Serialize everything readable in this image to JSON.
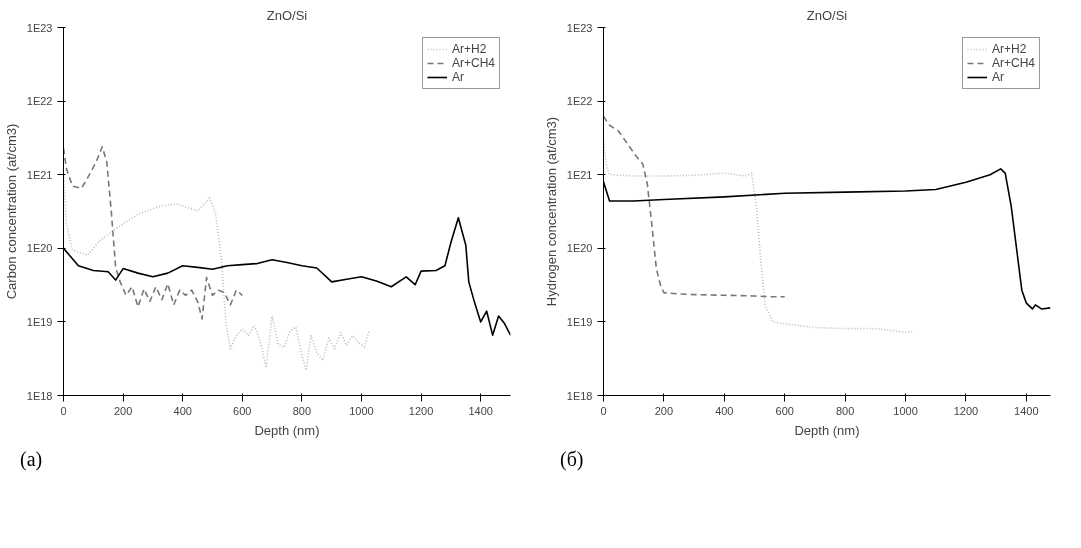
{
  "chart_data": [
    {
      "type": "line",
      "title": "ZnO/Si",
      "xlabel": "Depth (nm)",
      "ylabel": "Carbon concentration (at/cm3)",
      "log": "y",
      "grid": false,
      "legend": "top right",
      "xlim": [
        0,
        1500
      ],
      "xticks": [
        0,
        200,
        400,
        600,
        800,
        1000,
        1200,
        1400
      ],
      "ylim": [
        1e+18,
        1e+23
      ],
      "yticks": [
        {
          "value": 1e+18,
          "label": "1E18"
        },
        {
          "value": 1e+19,
          "label": "1E19"
        },
        {
          "value": 1e+20,
          "label": "1E20"
        },
        {
          "value": 1e+21,
          "label": "1E21"
        },
        {
          "value": 1e+22,
          "label": "1E22"
        },
        {
          "value": 1e+23,
          "label": "1E23"
        }
      ],
      "annotations": [
        "(a)"
      ],
      "series": [
        {
          "name": "Ar+H2",
          "color": "#bbbbbb",
          "line_style": "dotted",
          "x": [
            0,
            10,
            30,
            80,
            120,
            180,
            250,
            330,
            380,
            450,
            490,
            510,
            530,
            545,
            560,
            580,
            600,
            620,
            640,
            660,
            680,
            700,
            720,
            740,
            760,
            780,
            800,
            815,
            830,
            850,
            870,
            890,
            910,
            930,
            950,
            970,
            990,
            1010,
            1025
          ],
          "values": [
            1e+21,
            2.1e+20,
            9.5e+19,
            8e+19,
            1.25e+20,
            1.9e+20,
            2.9e+20,
            3.8e+20,
            4e+20,
            3.2e+20,
            4.8e+20,
            3e+20,
            7e+19,
            9.5e+18,
            4.3e+18,
            6.5e+18,
            8e+18,
            6.5e+18,
            9e+18,
            5.5e+18,
            2.4e+18,
            1.2e+19,
            5e+18,
            4.5e+18,
            7.5e+18,
            8.5e+18,
            3.5e+18,
            2.2e+18,
            6.5e+18,
            3.8e+18,
            3e+18,
            6e+18,
            4.3e+18,
            7.2e+18,
            4.8e+18,
            6.5e+18,
            5.2e+18,
            4.6e+18,
            7.5e+18
          ]
        },
        {
          "name": "Ar+CH4",
          "color": "#777777",
          "line_style": "dashed",
          "x": [
            0,
            10,
            30,
            60,
            80,
            110,
            130,
            145,
            160,
            175,
            190,
            210,
            230,
            250,
            270,
            290,
            310,
            330,
            350,
            370,
            390,
            410,
            430,
            450,
            465,
            480,
            500,
            520,
            540,
            560,
            580,
            600
          ],
          "values": [
            2.3e+21,
            1.2e+21,
            7e+20,
            6.5e+20,
            8.9e+20,
            1.5e+21,
            2.4e+21,
            1.5e+21,
            3.3e+20,
            5.5e+19,
            3.5e+19,
            2.3e+19,
            3e+19,
            1.6e+19,
            2.8e+19,
            1.9e+19,
            3e+19,
            2e+19,
            3.3e+19,
            1.7e+19,
            2.7e+19,
            2.3e+19,
            2.7e+19,
            1.9e+19,
            1.1e+19,
            4e+19,
            2.3e+19,
            2.7e+19,
            2.5e+19,
            1.7e+19,
            2.7e+19,
            2.3e+19
          ]
        },
        {
          "name": "Ar",
          "color": "#000000",
          "line_style": "solid",
          "x": [
            0,
            50,
            100,
            150,
            175,
            200,
            250,
            300,
            350,
            400,
            450,
            500,
            550,
            600,
            650,
            700,
            750,
            800,
            850,
            900,
            950,
            1000,
            1050,
            1100,
            1150,
            1180,
            1200,
            1250,
            1280,
            1300,
            1325,
            1350,
            1360,
            1380,
            1400,
            1420,
            1440,
            1460,
            1480,
            1500
          ],
          "values": [
            1e+20,
            5.8e+19,
            5e+19,
            4.8e+19,
            3.7e+19,
            5.3e+19,
            4.6e+19,
            4.1e+19,
            4.6e+19,
            5.8e+19,
            5.5e+19,
            5.2e+19,
            5.8e+19,
            6e+19,
            6.2e+19,
            7e+19,
            6.4e+19,
            5.8e+19,
            5.4e+19,
            3.5e+19,
            3.8e+19,
            4.1e+19,
            3.6e+19,
            3e+19,
            4.1e+19,
            3.2e+19,
            4.9e+19,
            5e+19,
            5.8e+19,
            1.2e+20,
            2.6e+20,
            1.1e+20,
            3.5e+19,
            1.8e+19,
            1e+19,
            1.4e+19,
            6.6e+18,
            1.2e+19,
            9.5e+18,
            6.6e+18
          ]
        }
      ]
    },
    {
      "type": "line",
      "title": "ZnO/Si",
      "xlabel": "Depth (nm)",
      "ylabel": "Hydrogen concentration (at/cm3)",
      "log": "y",
      "grid": false,
      "legend": "top right",
      "xlim": [
        0,
        1480
      ],
      "xticks": [
        0,
        200,
        400,
        600,
        800,
        1000,
        1200,
        1400
      ],
      "ylim": [
        1e+18,
        1e+23
      ],
      "yticks": [
        {
          "value": 1e+18,
          "label": "1E18"
        },
        {
          "value": 1e+19,
          "label": "1E19"
        },
        {
          "value": 1e+20,
          "label": "1E20"
        },
        {
          "value": 1e+21,
          "label": "1E21"
        },
        {
          "value": 1e+22,
          "label": "1E22"
        },
        {
          "value": 1e+23,
          "label": "1E23"
        }
      ],
      "annotations": [
        "(б)"
      ],
      "series": [
        {
          "name": "Ar+H2",
          "color": "#bbbbbb",
          "line_style": "dotted",
          "x": [
            0,
            10,
            20,
            100,
            200,
            300,
            400,
            470,
            490,
            505,
            520,
            535,
            560,
            600,
            700,
            800,
            900,
            1000,
            1025
          ],
          "values": [
            2.9e+21,
            1.3e+21,
            1e+21,
            9.6e+20,
            9.6e+20,
            9.8e+20,
            1.05e+21,
            9.6e+20,
            1.05e+21,
            4.2e+20,
            7.4e+19,
            1.7e+19,
            1e+19,
            9.4e+18,
            8.4e+18,
            8.1e+18,
            8.1e+18,
            7.2e+18,
            7.4e+18
          ]
        },
        {
          "name": "Ar+CH4",
          "color": "#777777",
          "line_style": "dashed",
          "x": [
            0,
            20,
            50,
            80,
            110,
            130,
            145,
            160,
            175,
            190,
            200,
            250,
            300,
            400,
            500,
            550,
            600
          ],
          "values": [
            6.2e+21,
            4.7e+21,
            3.9e+21,
            2.6e+21,
            1.75e+21,
            1.4e+21,
            7.5e+20,
            2.1e+20,
            5.3e+19,
            3e+19,
            2.5e+19,
            2.4e+19,
            2.35e+19,
            2.3e+19,
            2.25e+19,
            2.2e+19,
            2.2e+19
          ]
        },
        {
          "name": "Ar",
          "color": "#000000",
          "line_style": "solid",
          "x": [
            0,
            20,
            100,
            200,
            400,
            600,
            800,
            1000,
            1100,
            1200,
            1280,
            1315,
            1330,
            1350,
            1370,
            1385,
            1400,
            1420,
            1430,
            1450,
            1480
          ],
          "values": [
            8e+20,
            4.4e+20,
            4.4e+20,
            4.6e+20,
            5e+20,
            5.6e+20,
            5.8e+20,
            6e+20,
            6.3e+20,
            7.9e+20,
            1e+21,
            1.2e+21,
            1.05e+21,
            3.7e+20,
            8.3e+19,
            2.7e+19,
            1.8e+19,
            1.5e+19,
            1.7e+19,
            1.5e+19,
            1.55e+19
          ]
        }
      ]
    }
  ]
}
